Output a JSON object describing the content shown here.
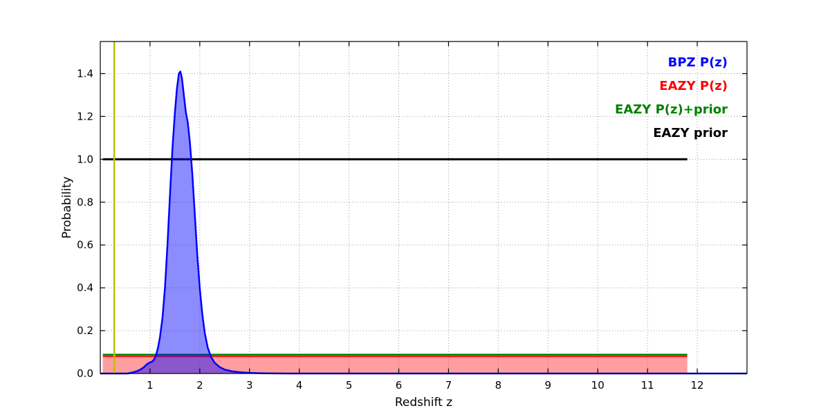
{
  "chart_data": {
    "type": "line",
    "title": "",
    "xlabel": "Redshift z",
    "ylabel": "Probability",
    "xlim": [
      0,
      13.0
    ],
    "ylim": [
      0,
      1.55
    ],
    "xticks": [
      1,
      2,
      3,
      4,
      5,
      6,
      7,
      8,
      9,
      10,
      11,
      12
    ],
    "xtick_labels": [
      "1",
      "2",
      "3",
      "4",
      "5",
      "6",
      "7",
      "8",
      "9",
      "10",
      "11",
      "12"
    ],
    "yticks": [
      0.0,
      0.2,
      0.4,
      0.6,
      0.8,
      1.0,
      1.2,
      1.4
    ],
    "ytick_labels": [
      "0.0",
      "0.2",
      "0.4",
      "0.6",
      "0.8",
      "1.0",
      "1.2",
      "1.4"
    ],
    "grid": {
      "on": true,
      "style": "dotted",
      "color": "#999999"
    },
    "legend": {
      "position": "upper right",
      "entries": [
        {
          "label": "BPZ P(z)",
          "color": "#0000ff"
        },
        {
          "label": "EAZY P(z)",
          "color": "#ff0000"
        },
        {
          "label": "EAZY P(z)+prior",
          "color": "#008000"
        },
        {
          "label": "EAZY prior",
          "color": "#000000"
        }
      ]
    },
    "series": [
      {
        "name": "EAZY P(z)",
        "kind": "area",
        "color": "#ff0000",
        "fill": true,
        "fill_opacity": 0.38,
        "line_width": 2,
        "x": [
          0.05,
          11.8
        ],
        "y": [
          0.08,
          0.08
        ]
      },
      {
        "name": "EAZY P(z)+prior",
        "kind": "line",
        "color": "#008000",
        "fill": false,
        "line_width": 2.5,
        "x": [
          0.05,
          11.8
        ],
        "y": [
          0.088,
          0.088
        ]
      },
      {
        "name": "EAZY prior",
        "kind": "line",
        "color": "#000000",
        "fill": false,
        "line_width": 3,
        "x": [
          0.05,
          11.8
        ],
        "y": [
          1.0,
          1.0
        ]
      },
      {
        "name": "BPZ P(z)",
        "kind": "area",
        "color": "#0000ff",
        "fill": true,
        "fill_opacity": 0.45,
        "line_width": 2.5,
        "x": [
          0.0,
          0.55,
          0.65,
          0.75,
          0.82,
          0.88,
          0.93,
          0.97,
          1.0,
          1.04,
          1.08,
          1.12,
          1.16,
          1.2,
          1.25,
          1.3,
          1.35,
          1.4,
          1.45,
          1.5,
          1.54,
          1.58,
          1.61,
          1.64,
          1.68,
          1.72,
          1.76,
          1.8,
          1.85,
          1.9,
          1.95,
          2.0,
          2.05,
          2.1,
          2.16,
          2.22,
          2.3,
          2.4,
          2.5,
          2.65,
          2.8,
          3.0,
          3.3,
          3.8,
          13.0
        ],
        "y": [
          0.0,
          0.0,
          0.005,
          0.012,
          0.02,
          0.03,
          0.042,
          0.048,
          0.052,
          0.055,
          0.065,
          0.085,
          0.12,
          0.17,
          0.26,
          0.4,
          0.6,
          0.83,
          1.05,
          1.22,
          1.33,
          1.4,
          1.41,
          1.38,
          1.3,
          1.22,
          1.17,
          1.08,
          0.93,
          0.74,
          0.55,
          0.4,
          0.28,
          0.19,
          0.12,
          0.08,
          0.05,
          0.03,
          0.018,
          0.01,
          0.006,
          0.003,
          0.001,
          0.0,
          0.0
        ]
      }
    ],
    "annotations": [
      {
        "name": "spec-z-marker",
        "kind": "vline",
        "x": 0.28,
        "color": "#bfbf00",
        "line_width": 2.5
      }
    ]
  }
}
